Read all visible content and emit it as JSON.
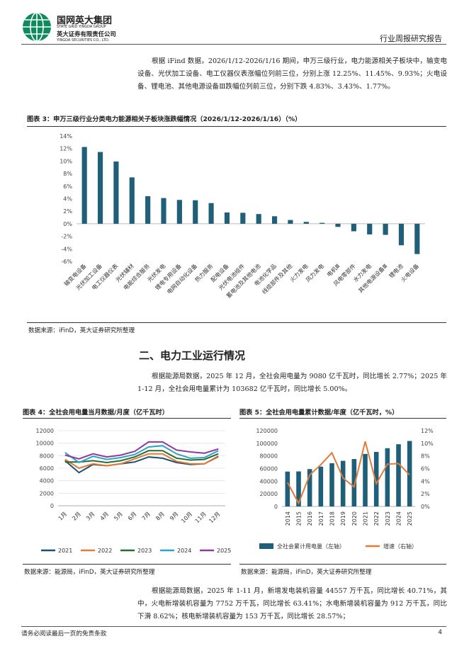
{
  "header": {
    "company_cn": "国网英大集团",
    "company_en": "STATE GRID YINGDA GROUP",
    "securities_cn": "英大证券有限责任公司",
    "securities_en": "YINGDA SECURITIES CO., LTD.",
    "report_type": "行业周报研究报告"
  },
  "paragraph1": "根据 iFind 数据，2026/1/12-2026/1/16 期间，申万三级行业，电力能源相关子板块中，输变电设备、光伏加工设备、电工仪器仪表涨幅位列前三位，分别上涨 12.25%、11.45%、9.93%；火电设备、锂电池、其他电源设备Ⅲ跌幅位列前三位，分别下跌 4.83%、3.43%、1.77%。",
  "figure3": {
    "title": "图表 3：申万三级行业分类电力能源相关子板块涨跌幅情况（2026/1/12-2026/1/16）（%）",
    "source": "数据来源：iFinD，英大证券研究所整理"
  },
  "section2_heading": "二、电力工业运行情况",
  "paragraph2": "根据能源局数据，2025 年 12 月，全社会用电量为 9080 亿千瓦时，同比增长 2.77%；2025 年 1-12 月，全社会用电量累计为 103682 亿千瓦时，同比增长 5.00%。",
  "figure4": {
    "title": "图表 4：全社会用电量当月数据/月度（亿千瓦时）",
    "source": "数据来源：能源局，iFinD，英大证券研究所整理"
  },
  "figure5": {
    "title": "图表 5：全社会用电量累计数据/年度（亿千瓦时，%）",
    "source": "数据来源：能源局，iFinD，英大证券研究所整理"
  },
  "paragraph3": "根据能源局数据，2025 年 1-11 月，新增发电装机容量 44557 万千瓦，同比增长 40.71%，其中，火电新增装机容量为 7752 万千瓦，同比增长 63.41%；水电新增装机容量为 912 万千瓦，同比下滑 8.62%；核电新增装机容量为 153 万千瓦，同比增长 28.57%；",
  "footer": {
    "disclaimer": "请务必阅读最后一页的免责条款",
    "page_number": "4"
  },
  "colors": {
    "bar": "#1f5f7a",
    "line2021": "#1b4f72",
    "line2022": "#e07b39",
    "line2023": "#2e6b2e",
    "line2024": "#2ea3c8",
    "line2025": "#8e3c9c",
    "growth": "#e07b39"
  },
  "chart_data": [
    {
      "type": "bar",
      "categories": [
        "输变电设备",
        "光伏加工设备",
        "电工仪器仪表",
        "光伏辅材",
        "电能综合服务",
        "光伏发电",
        "锂电专用设备",
        "电网自动化设备",
        "热力服务",
        "配电设备",
        "光伏电池组件",
        "蓄电池及其他电池",
        "电池化学品",
        "线缆部件及其他",
        "火力发电",
        "风力发电",
        "电机Ⅲ",
        "风电零部件",
        "水力发电",
        "其他电源设备Ⅲ",
        "锂电池",
        "火电设备"
      ],
      "values": [
        12.25,
        11.45,
        9.93,
        7.4,
        4.4,
        4.1,
        3.8,
        3.75,
        3.3,
        1.8,
        1.75,
        1.55,
        1.2,
        0.6,
        0.3,
        0.15,
        -0.5,
        -1.2,
        -1.7,
        -1.77,
        -3.43,
        -4.83
      ],
      "ylim": [
        -6,
        14
      ],
      "yticks": [
        "14%",
        "12%",
        "10%",
        "8%",
        "6%",
        "4%",
        "2%",
        "0%",
        "-2%",
        "-4%",
        "-6%"
      ],
      "grid": false
    },
    {
      "type": "line",
      "categories": [
        "1月",
        "2月",
        "3月",
        "4月",
        "5月",
        "6月",
        "7月",
        "8月",
        "9月",
        "10月",
        "11月",
        "12月"
      ],
      "series": [
        {
          "name": "2021",
          "values": [
            7200,
            5300,
            6600,
            6400,
            6700,
            7000,
            7800,
            7600,
            6900,
            6600,
            6700,
            7900
          ]
        },
        {
          "name": "2022",
          "values": [
            7400,
            6000,
            6700,
            6400,
            6700,
            7500,
            8300,
            8300,
            7100,
            6700,
            6700,
            7800
          ]
        },
        {
          "name": "2023",
          "values": [
            7000,
            7000,
            7200,
            6900,
            7200,
            7800,
            8800,
            8800,
            7600,
            7300,
            7400,
            8300
          ]
        },
        {
          "name": "2024",
          "values": [
            8500,
            6900,
            7900,
            7400,
            7700,
            8200,
            9400,
            9600,
            8300,
            7600,
            7700,
            8800
          ]
        },
        {
          "name": "2025",
          "values": [
            8100,
            7500,
            8300,
            7800,
            8100,
            8700,
            10200,
            10200,
            8900,
            8600,
            8400,
            9080
          ]
        }
      ],
      "ylim": [
        0,
        12000
      ],
      "yticks": [
        "12000",
        "10000",
        "8000",
        "6000",
        "4000",
        "2000",
        "0"
      ],
      "legend": "bottom"
    },
    {
      "type": "bar",
      "categories": [
        "2014",
        "2015",
        "2016",
        "2017",
        "2018",
        "2019",
        "2020",
        "2021",
        "2022",
        "2023",
        "2024",
        "2025"
      ],
      "series": [
        {
          "name": "全社会累计用电量（左轴）",
          "values": [
            55233,
            55500,
            59198,
            63077,
            68449,
            72255,
            75110,
            83128,
            86372,
            92241,
            98521,
            103682
          ]
        },
        {
          "name": "增速（右轴）",
          "values": [
            3.8,
            0.5,
            5.0,
            6.6,
            8.5,
            4.5,
            3.1,
            10.3,
            3.6,
            6.7,
            6.8,
            5.0
          ]
        }
      ],
      "ylim": [
        0,
        120000
      ],
      "y2lim": [
        0,
        12
      ],
      "yticks": [
        "120000",
        "100000",
        "80000",
        "60000",
        "40000",
        "20000",
        "0"
      ],
      "y2ticks": [
        "12%",
        "10%",
        "8%",
        "6%",
        "4%",
        "2%",
        "0%"
      ],
      "legend": "bottom"
    }
  ]
}
